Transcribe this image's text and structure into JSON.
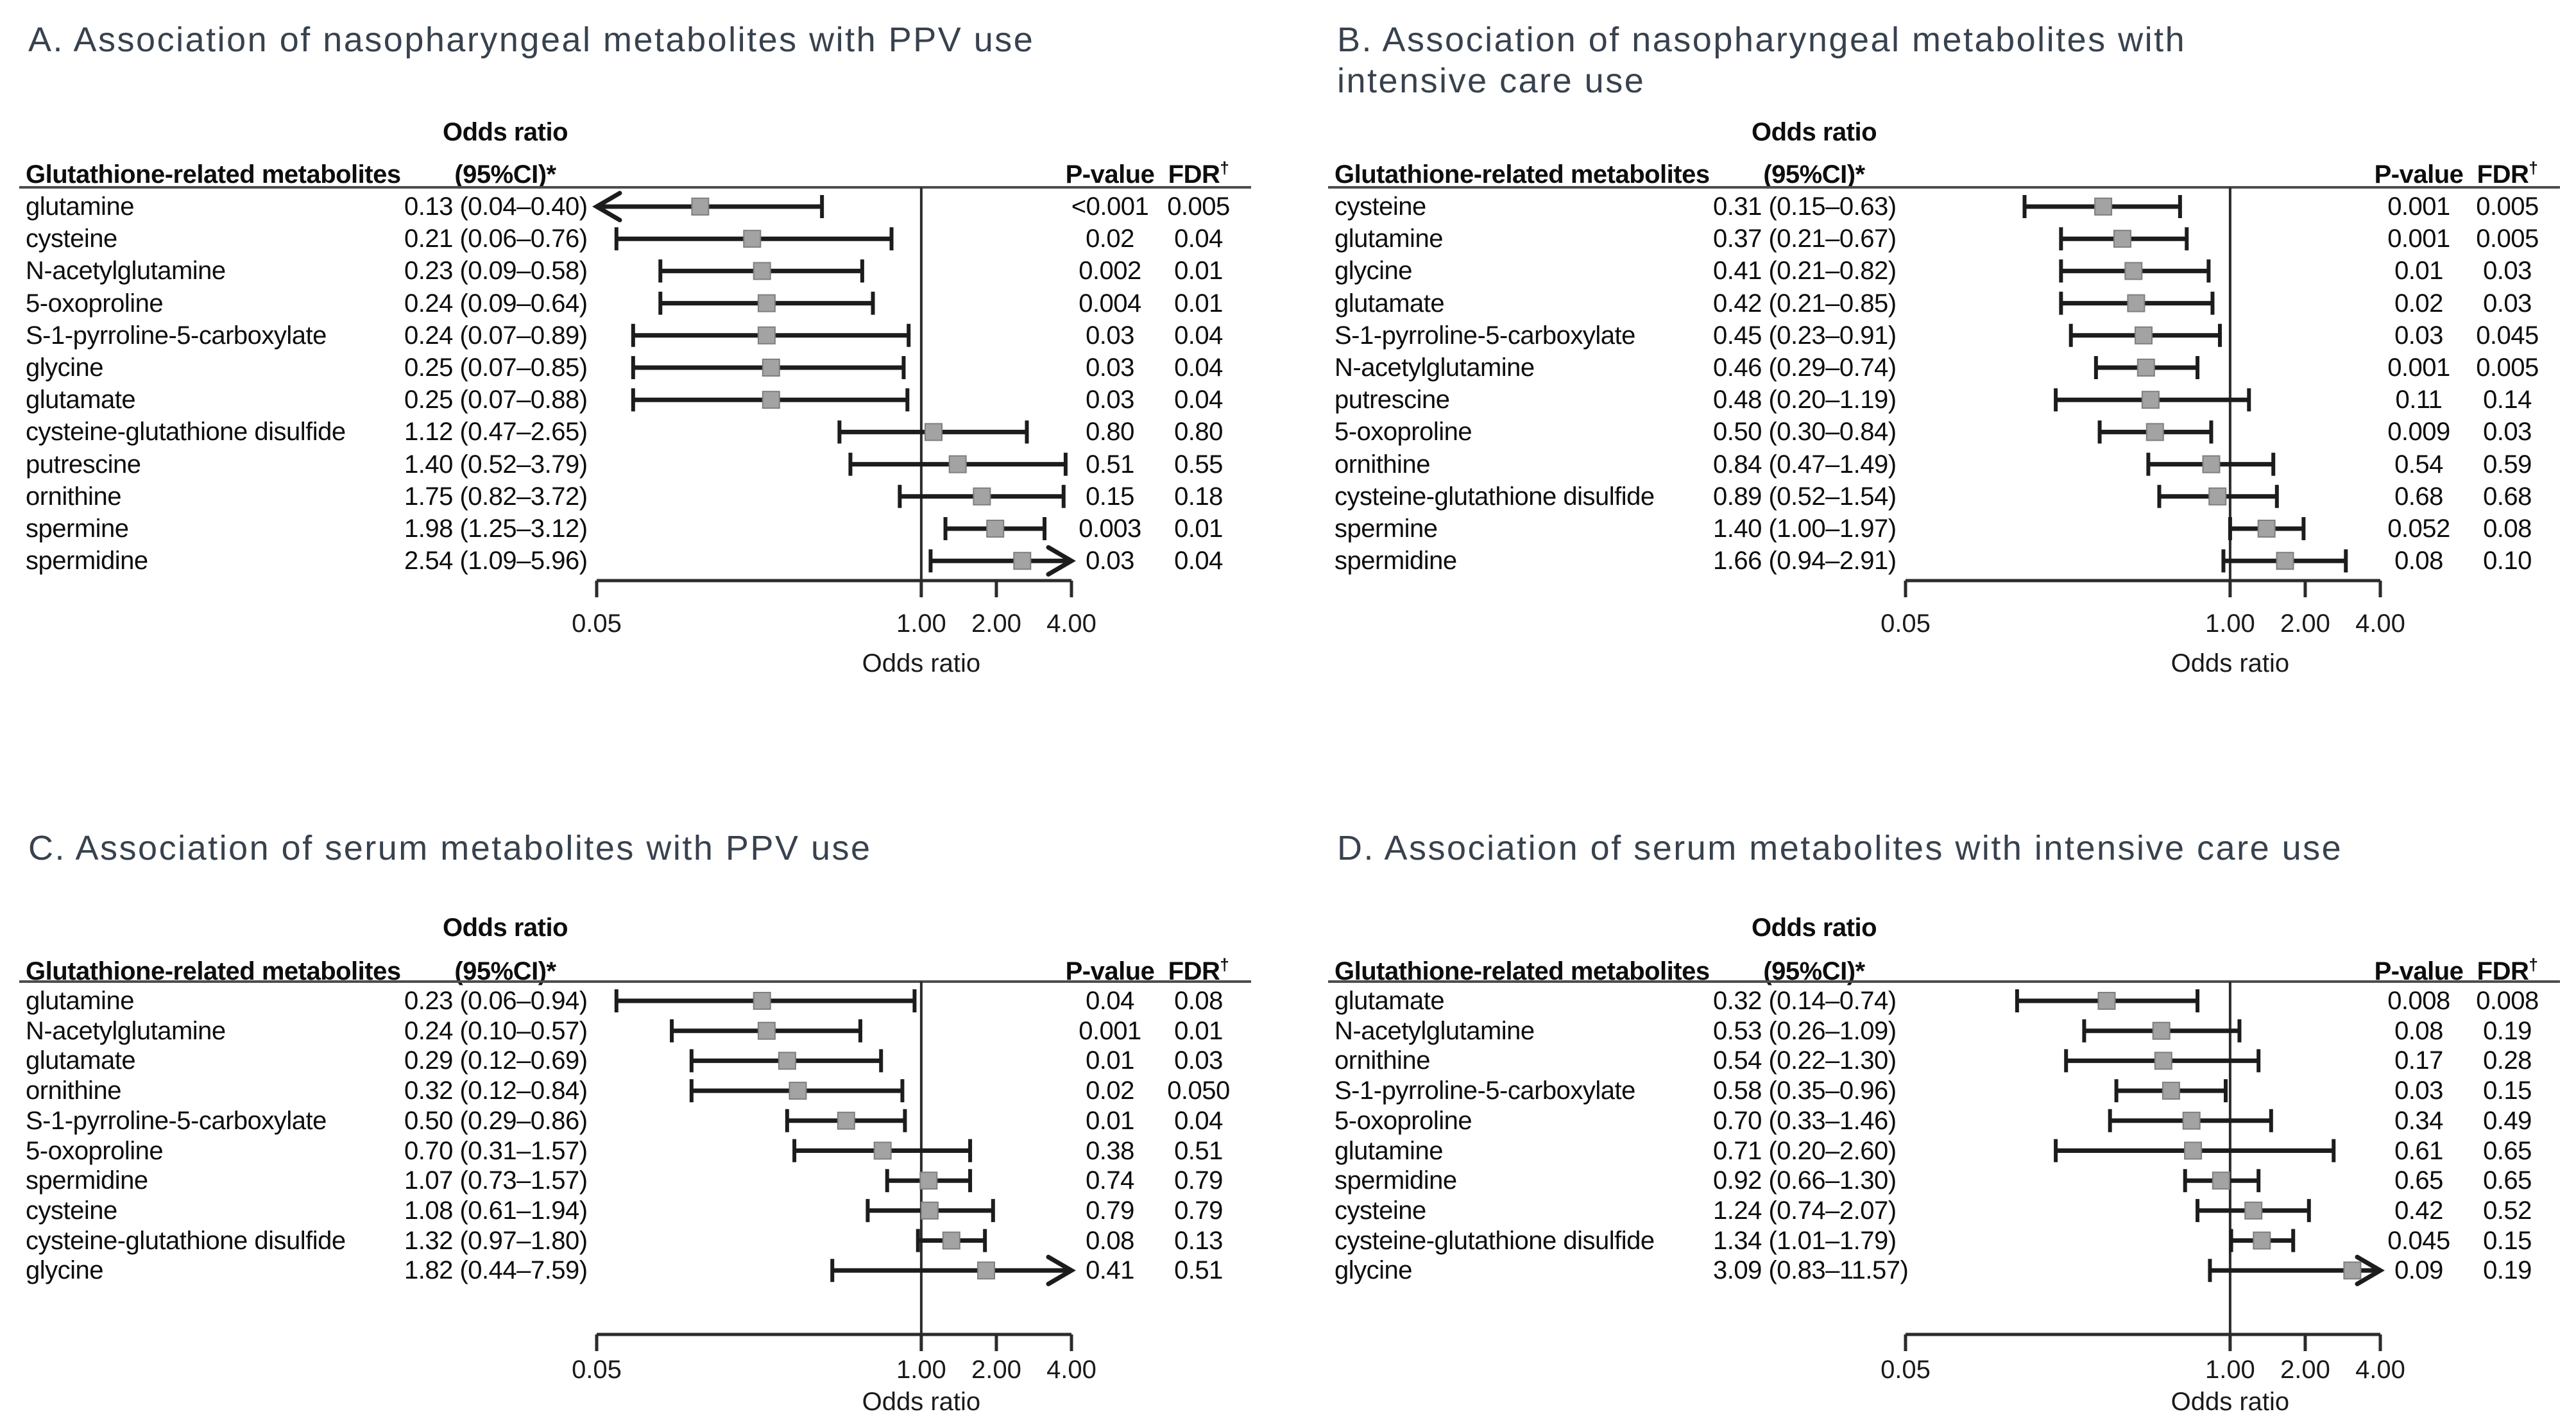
{
  "chart_data": [
    {
      "type": "forest",
      "panel": "A",
      "title": "A. Association of nasopharyngeal metabolites with PPV use",
      "columns": {
        "metabolites": "Glutathione-related metabolites",
        "or_line1": "Odds ratio",
        "or_line2": "(95%CI)*",
        "pvalue": "P-value",
        "fdr": "FDR",
        "fdr_sup": "†"
      },
      "axis": {
        "min": 0.05,
        "max": 4,
        "refline": 1,
        "scale": "log",
        "tick_values": [
          0.05,
          1,
          2,
          4
        ],
        "tick_labels": [
          "0.05",
          "1.00",
          "2.00",
          "4.00"
        ],
        "label": "Odds ratio"
      },
      "rows": [
        {
          "name": "glutamine",
          "or_text": "0.13 (0.04–0.40)",
          "or": 0.13,
          "lo": 0.04,
          "hi": 0.4,
          "p": "<0.001",
          "fdr": "0.005"
        },
        {
          "name": "cysteine",
          "or_text": "0.21 (0.06–0.76)",
          "or": 0.21,
          "lo": 0.06,
          "hi": 0.76,
          "p": "0.02",
          "fdr": "0.04"
        },
        {
          "name": "N-acetylglutamine",
          "or_text": "0.23 (0.09–0.58)",
          "or": 0.23,
          "lo": 0.09,
          "hi": 0.58,
          "p": "0.002",
          "fdr": "0.01"
        },
        {
          "name": "5-oxoproline",
          "or_text": "0.24 (0.09–0.64)",
          "or": 0.24,
          "lo": 0.09,
          "hi": 0.64,
          "p": "0.004",
          "fdr": "0.01"
        },
        {
          "name": "S-1-pyrroline-5-carboxylate",
          "or_text": "0.24 (0.07–0.89)",
          "or": 0.24,
          "lo": 0.07,
          "hi": 0.89,
          "p": "0.03",
          "fdr": "0.04"
        },
        {
          "name": "glycine",
          "or_text": "0.25 (0.07–0.85)",
          "or": 0.25,
          "lo": 0.07,
          "hi": 0.85,
          "p": "0.03",
          "fdr": "0.04"
        },
        {
          "name": "glutamate",
          "or_text": "0.25 (0.07–0.88)",
          "or": 0.25,
          "lo": 0.07,
          "hi": 0.88,
          "p": "0.03",
          "fdr": "0.04"
        },
        {
          "name": "cysteine-glutathione disulfide",
          "or_text": "1.12 (0.47–2.65)",
          "or": 1.12,
          "lo": 0.47,
          "hi": 2.65,
          "p": "0.80",
          "fdr": "0.80"
        },
        {
          "name": "putrescine",
          "or_text": "1.40 (0.52–3.79)",
          "or": 1.4,
          "lo": 0.52,
          "hi": 3.79,
          "p": "0.51",
          "fdr": "0.55"
        },
        {
          "name": "ornithine",
          "or_text": "1.75 (0.82–3.72)",
          "or": 1.75,
          "lo": 0.82,
          "hi": 3.72,
          "p": "0.15",
          "fdr": "0.18"
        },
        {
          "name": "spermine",
          "or_text": "1.98 (1.25–3.12)",
          "or": 1.98,
          "lo": 1.25,
          "hi": 3.12,
          "p": "0.003",
          "fdr": "0.01"
        },
        {
          "name": "spermidine",
          "or_text": "2.54 (1.09–5.96)",
          "or": 2.54,
          "lo": 1.09,
          "hi": 5.96,
          "p": "0.03",
          "fdr": "0.04"
        }
      ]
    },
    {
      "type": "forest",
      "panel": "B",
      "title": "B. Association of nasopharyngeal metabolites with\nintensive care use",
      "columns": {
        "metabolites": "Glutathione-related metabolites",
        "or_line1": "Odds ratio",
        "or_line2": "(95%CI)*",
        "pvalue": "P-value",
        "fdr": "FDR",
        "fdr_sup": "†"
      },
      "axis": {
        "min": 0.05,
        "max": 4,
        "refline": 1,
        "scale": "log",
        "tick_values": [
          0.05,
          1,
          2,
          4
        ],
        "tick_labels": [
          "0.05",
          "1.00",
          "2.00",
          "4.00"
        ],
        "label": "Odds ratio"
      },
      "rows": [
        {
          "name": "cysteine",
          "or_text": "0.31 (0.15–0.63)",
          "or": 0.31,
          "lo": 0.15,
          "hi": 0.63,
          "p": "0.001",
          "fdr": "0.005"
        },
        {
          "name": "glutamine",
          "or_text": "0.37 (0.21–0.67)",
          "or": 0.37,
          "lo": 0.21,
          "hi": 0.67,
          "p": "0.001",
          "fdr": "0.005"
        },
        {
          "name": "glycine",
          "or_text": "0.41 (0.21–0.82)",
          "or": 0.41,
          "lo": 0.21,
          "hi": 0.82,
          "p": "0.01",
          "fdr": "0.03"
        },
        {
          "name": "glutamate",
          "or_text": "0.42 (0.21–0.85)",
          "or": 0.42,
          "lo": 0.21,
          "hi": 0.85,
          "p": "0.02",
          "fdr": "0.03"
        },
        {
          "name": "S-1-pyrroline-5-carboxylate",
          "or_text": "0.45 (0.23–0.91)",
          "or": 0.45,
          "lo": 0.23,
          "hi": 0.91,
          "p": "0.03",
          "fdr": "0.045"
        },
        {
          "name": "N-acetylglutamine",
          "or_text": "0.46 (0.29–0.74)",
          "or": 0.46,
          "lo": 0.29,
          "hi": 0.74,
          "p": "0.001",
          "fdr": "0.005"
        },
        {
          "name": "putrescine",
          "or_text": "0.48 (0.20–1.19)",
          "or": 0.48,
          "lo": 0.2,
          "hi": 1.19,
          "p": "0.11",
          "fdr": "0.14"
        },
        {
          "name": "5-oxoproline",
          "or_text": "0.50 (0.30–0.84)",
          "or": 0.5,
          "lo": 0.3,
          "hi": 0.84,
          "p": "0.009",
          "fdr": "0.03"
        },
        {
          "name": "ornithine",
          "or_text": "0.84 (0.47–1.49)",
          "or": 0.84,
          "lo": 0.47,
          "hi": 1.49,
          "p": "0.54",
          "fdr": "0.59"
        },
        {
          "name": "cysteine-glutathione disulfide",
          "or_text": "0.89 (0.52–1.54)",
          "or": 0.89,
          "lo": 0.52,
          "hi": 1.54,
          "p": "0.68",
          "fdr": "0.68"
        },
        {
          "name": "spermine",
          "or_text": "1.40 (1.00–1.97)",
          "or": 1.4,
          "lo": 1.0,
          "hi": 1.97,
          "p": "0.052",
          "fdr": "0.08"
        },
        {
          "name": "spermidine",
          "or_text": "1.66 (0.94–2.91)",
          "or": 1.66,
          "lo": 0.94,
          "hi": 2.91,
          "p": "0.08",
          "fdr": "0.10"
        }
      ]
    },
    {
      "type": "forest",
      "panel": "C",
      "title": "C. Association of serum metabolites with PPV use",
      "columns": {
        "metabolites": "Glutathione-related metabolites",
        "or_line1": "Odds ratio",
        "or_line2": "(95%CI)*",
        "pvalue": "P-value",
        "fdr": "FDR",
        "fdr_sup": "†"
      },
      "axis": {
        "min": 0.05,
        "max": 4,
        "refline": 1,
        "scale": "log",
        "tick_values": [
          0.05,
          1,
          2,
          4
        ],
        "tick_labels": [
          "0.05",
          "1.00",
          "2.00",
          "4.00"
        ],
        "label": "Odds ratio"
      },
      "rows": [
        {
          "name": "glutamine",
          "or_text": "0.23 (0.06–0.94)",
          "or": 0.23,
          "lo": 0.06,
          "hi": 0.94,
          "p": "0.04",
          "fdr": "0.08"
        },
        {
          "name": "N-acetylglutamine",
          "or_text": "0.24 (0.10–0.57)",
          "or": 0.24,
          "lo": 0.1,
          "hi": 0.57,
          "p": "0.001",
          "fdr": "0.01"
        },
        {
          "name": "glutamate",
          "or_text": "0.29 (0.12–0.69)",
          "or": 0.29,
          "lo": 0.12,
          "hi": 0.69,
          "p": "0.01",
          "fdr": "0.03"
        },
        {
          "name": "ornithine",
          "or_text": "0.32 (0.12–0.84)",
          "or": 0.32,
          "lo": 0.12,
          "hi": 0.84,
          "p": "0.02",
          "fdr": "0.050"
        },
        {
          "name": "S-1-pyrroline-5-carboxylate",
          "or_text": "0.50 (0.29–0.86)",
          "or": 0.5,
          "lo": 0.29,
          "hi": 0.86,
          "p": "0.01",
          "fdr": "0.04"
        },
        {
          "name": "5-oxoproline",
          "or_text": "0.70 (0.31–1.57)",
          "or": 0.7,
          "lo": 0.31,
          "hi": 1.57,
          "p": "0.38",
          "fdr": "0.51"
        },
        {
          "name": "spermidine",
          "or_text": "1.07 (0.73–1.57)",
          "or": 1.07,
          "lo": 0.73,
          "hi": 1.57,
          "p": "0.74",
          "fdr": "0.79"
        },
        {
          "name": "cysteine",
          "or_text": "1.08 (0.61–1.94)",
          "or": 1.08,
          "lo": 0.61,
          "hi": 1.94,
          "p": "0.79",
          "fdr": "0.79"
        },
        {
          "name": "cysteine-glutathione disulfide",
          "or_text": "1.32 (0.97–1.80)",
          "or": 1.32,
          "lo": 0.97,
          "hi": 1.8,
          "p": "0.08",
          "fdr": "0.13"
        },
        {
          "name": "glycine",
          "or_text": "1.82 (0.44–7.59)",
          "or": 1.82,
          "lo": 0.44,
          "hi": 7.59,
          "p": "0.41",
          "fdr": "0.51"
        }
      ]
    },
    {
      "type": "forest",
      "panel": "D",
      "title": "D. Association of serum metabolites with intensive care use",
      "columns": {
        "metabolites": "Glutathione-related metabolites",
        "or_line1": "Odds ratio",
        "or_line2": "(95%CI)*",
        "pvalue": "P-value",
        "fdr": "FDR",
        "fdr_sup": "†"
      },
      "axis": {
        "min": 0.05,
        "max": 4,
        "refline": 1,
        "scale": "log",
        "tick_values": [
          0.05,
          1,
          2,
          4
        ],
        "tick_labels": [
          "0.05",
          "1.00",
          "2.00",
          "4.00"
        ],
        "label": "Odds ratio"
      },
      "rows": [
        {
          "name": "glutamate",
          "or_text": "0.32 (0.14–0.74)",
          "or": 0.32,
          "lo": 0.14,
          "hi": 0.74,
          "p": "0.008",
          "fdr": "0.008"
        },
        {
          "name": "N-acetylglutamine",
          "or_text": "0.53 (0.26–1.09)",
          "or": 0.53,
          "lo": 0.26,
          "hi": 1.09,
          "p": "0.08",
          "fdr": "0.19"
        },
        {
          "name": "ornithine",
          "or_text": "0.54 (0.22–1.30)",
          "or": 0.54,
          "lo": 0.22,
          "hi": 1.3,
          "p": "0.17",
          "fdr": "0.28"
        },
        {
          "name": "S-1-pyrroline-5-carboxylate",
          "or_text": "0.58 (0.35–0.96)",
          "or": 0.58,
          "lo": 0.35,
          "hi": 0.96,
          "p": "0.03",
          "fdr": "0.15"
        },
        {
          "name": "5-oxoproline",
          "or_text": "0.70 (0.33–1.46)",
          "or": 0.7,
          "lo": 0.33,
          "hi": 1.46,
          "p": "0.34",
          "fdr": "0.49"
        },
        {
          "name": "glutamine",
          "or_text": "0.71 (0.20–2.60)",
          "or": 0.71,
          "lo": 0.2,
          "hi": 2.6,
          "p": "0.61",
          "fdr": "0.65"
        },
        {
          "name": "spermidine",
          "or_text": "0.92 (0.66–1.30)",
          "or": 0.92,
          "lo": 0.66,
          "hi": 1.3,
          "p": "0.65",
          "fdr": "0.65"
        },
        {
          "name": "cysteine",
          "or_text": "1.24 (0.74–2.07)",
          "or": 1.24,
          "lo": 0.74,
          "hi": 2.07,
          "p": "0.42",
          "fdr": "0.52"
        },
        {
          "name": "cysteine-glutathione disulfide",
          "or_text": "1.34 (1.01–1.79)",
          "or": 1.34,
          "lo": 1.01,
          "hi": 1.79,
          "p": "0.045",
          "fdr": "0.15"
        },
        {
          "name": "glycine",
          "or_text": "3.09 (0.83–11.57)",
          "or": 3.09,
          "lo": 0.83,
          "hi": 11.57,
          "p": "0.09",
          "fdr": "0.19"
        }
      ]
    }
  ],
  "style_colors": {
    "title": "#38424e",
    "text": "#0d0d0d",
    "marker": "#a3a3a3",
    "marker_edge": "#7f7f7f",
    "bar": "#1c1c1c",
    "refline": "#2b2b2b",
    "rule": "#4d4d4d",
    "axis": "#2b2b2b"
  }
}
